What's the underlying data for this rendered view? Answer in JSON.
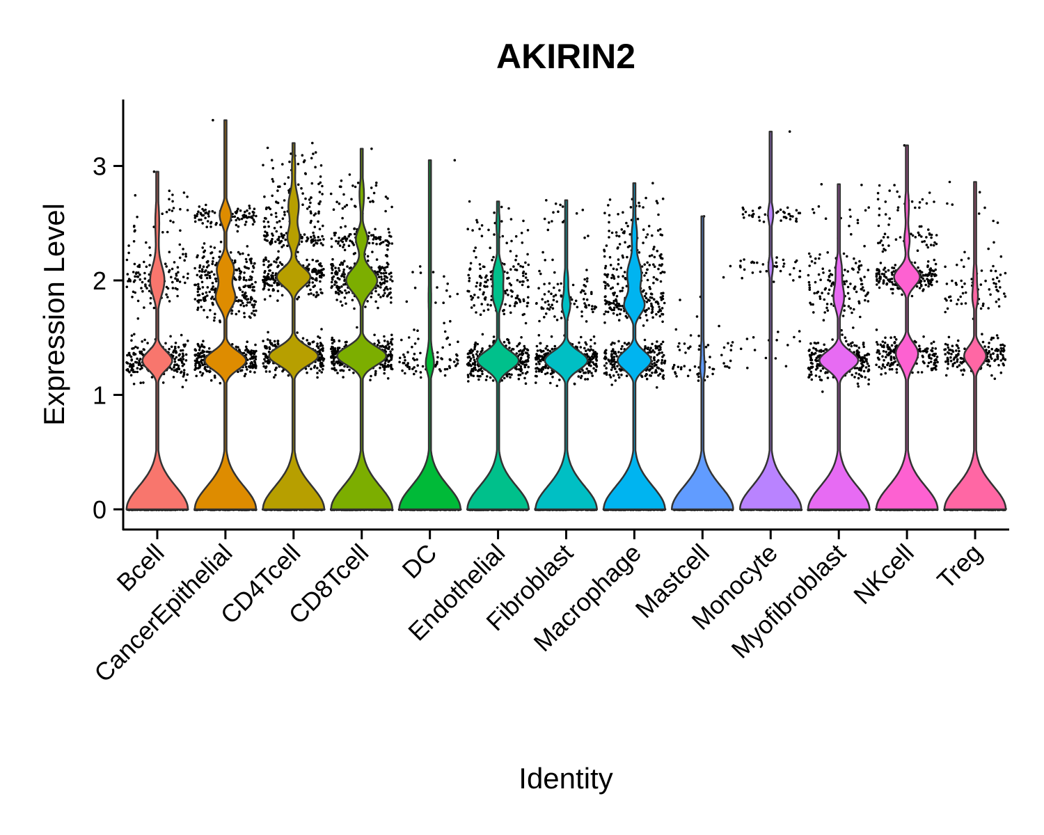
{
  "chart_data": {
    "type": "violin",
    "title": "AKIRIN2",
    "xlabel": "Identity",
    "ylabel": "Expression Level",
    "ylim": [
      -0.17,
      3.57
    ],
    "yticks": [
      0,
      1,
      2,
      3
    ],
    "categories": [
      "Bcell",
      "CancerEpithelial",
      "CD4Tcell",
      "CD8Tcell",
      "DC",
      "Endothelial",
      "Fibroblast",
      "Macrophage",
      "Mastcell",
      "Monocyte",
      "Myofibroblast",
      "NKcell",
      "Treg"
    ],
    "series": [
      {
        "category": "Bcell",
        "max": 2.95,
        "fill": "#F8766D",
        "point_clusters": [
          [
            1.3,
            0.08,
            230
          ],
          [
            2.0,
            0.13,
            110
          ],
          [
            2.5,
            0.18,
            30
          ]
        ]
      },
      {
        "category": "CancerEpithelial",
        "max": 3.4,
        "fill": "#DE8C00",
        "point_clusters": [
          [
            1.3,
            0.07,
            320
          ],
          [
            1.85,
            0.09,
            150
          ],
          [
            2.1,
            0.09,
            130
          ],
          [
            2.57,
            0.05,
            90
          ]
        ]
      },
      {
        "category": "CD4Tcell",
        "max": 3.2,
        "fill": "#B79F00",
        "point_clusters": [
          [
            1.34,
            0.07,
            380
          ],
          [
            2.03,
            0.08,
            260
          ],
          [
            2.37,
            0.04,
            90
          ],
          [
            2.65,
            0.12,
            80
          ],
          [
            3.0,
            0.1,
            25
          ]
        ]
      },
      {
        "category": "CD8Tcell",
        "max": 3.15,
        "fill": "#7CAE00",
        "point_clusters": [
          [
            1.34,
            0.07,
            380
          ],
          [
            2.0,
            0.1,
            240
          ],
          [
            2.36,
            0.05,
            90
          ],
          [
            2.75,
            0.12,
            35
          ]
        ]
      },
      {
        "category": "DC",
        "max": 3.05,
        "fill": "#00BA38",
        "point_clusters": [
          [
            1.27,
            0.05,
            60
          ],
          [
            1.42,
            0.05,
            15
          ],
          [
            1.85,
            0.2,
            20
          ]
        ]
      },
      {
        "category": "Endothelial",
        "max": 2.69,
        "fill": "#00C08B",
        "point_clusters": [
          [
            1.3,
            0.08,
            320
          ],
          [
            1.85,
            0.08,
            70
          ],
          [
            2.05,
            0.1,
            80
          ],
          [
            2.5,
            0.12,
            25
          ]
        ]
      },
      {
        "category": "Fibroblast",
        "max": 2.7,
        "fill": "#00BFC4",
        "point_clusters": [
          [
            1.3,
            0.08,
            330
          ],
          [
            1.78,
            0.06,
            60
          ],
          [
            2.0,
            0.1,
            30
          ],
          [
            2.55,
            0.12,
            15
          ]
        ]
      },
      {
        "category": "Macrophage",
        "max": 2.85,
        "fill": "#00B4F0",
        "point_clusters": [
          [
            1.3,
            0.08,
            260
          ],
          [
            1.78,
            0.06,
            150
          ],
          [
            2.05,
            0.12,
            110
          ],
          [
            2.4,
            0.1,
            40
          ],
          [
            2.65,
            0.08,
            15
          ]
        ]
      },
      {
        "category": "Mastcell",
        "max": 2.56,
        "fill": "#619CFF",
        "point_clusters": [
          [
            1.23,
            0.04,
            35
          ],
          [
            1.42,
            0.04,
            20
          ],
          [
            1.9,
            0.2,
            8
          ]
        ]
      },
      {
        "category": "Monocyte",
        "max": 3.3,
        "fill": "#B983FF",
        "point_clusters": [
          [
            2.58,
            0.04,
            40
          ],
          [
            2.12,
            0.05,
            35
          ],
          [
            1.45,
            0.06,
            12
          ],
          [
            1.25,
            0.08,
            5
          ]
        ]
      },
      {
        "category": "Myofibroblast",
        "max": 2.84,
        "fill": "#E76BF3",
        "point_clusters": [
          [
            1.3,
            0.08,
            300
          ],
          [
            1.85,
            0.1,
            80
          ],
          [
            2.1,
            0.1,
            45
          ],
          [
            2.55,
            0.12,
            15
          ]
        ]
      },
      {
        "category": "NKcell",
        "max": 3.18,
        "fill": "#FD61D1",
        "point_clusters": [
          [
            1.38,
            0.05,
            150
          ],
          [
            1.26,
            0.04,
            60
          ],
          [
            2.03,
            0.06,
            200
          ],
          [
            2.35,
            0.06,
            40
          ],
          [
            2.65,
            0.12,
            30
          ]
        ]
      },
      {
        "category": "Treg",
        "max": 2.86,
        "fill": "#FF67A4",
        "point_clusters": [
          [
            1.34,
            0.07,
            170
          ],
          [
            1.85,
            0.08,
            40
          ],
          [
            2.05,
            0.1,
            25
          ],
          [
            2.45,
            0.15,
            10
          ]
        ]
      }
    ]
  }
}
